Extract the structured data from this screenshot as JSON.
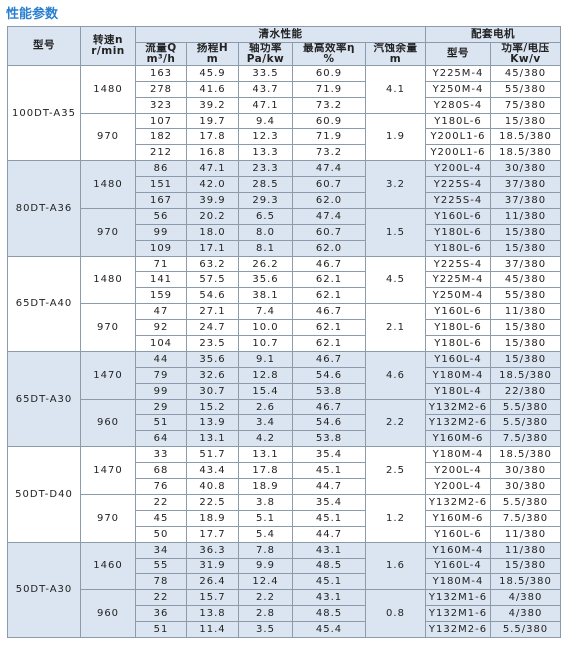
{
  "title": "性能参数",
  "header": {
    "model": "型号",
    "speed": [
      "转速n",
      "r/min"
    ],
    "clean_water": "清水性能",
    "motor": "配套电机",
    "columns": [
      [
        "流量Q",
        "m³/h"
      ],
      [
        "扬程H",
        "m"
      ],
      [
        "轴功率",
        "Pa/kw"
      ],
      [
        "最高效率η",
        "%"
      ],
      [
        "汽蚀余量",
        "m"
      ],
      [
        "型号"
      ],
      [
        "功率/电压",
        "Kw/v"
      ]
    ]
  },
  "models": [
    {
      "name": "100DT-A35",
      "speeds": [
        {
          "speed": "1480",
          "npsh": "4.1",
          "rows": [
            [
              "163",
              "45.9",
              "33.5",
              "60.9",
              "Y225M-4",
              "45/380"
            ],
            [
              "278",
              "41.6",
              "43.7",
              "71.9",
              "Y250M-4",
              "55/380"
            ],
            [
              "323",
              "39.2",
              "47.1",
              "73.2",
              "Y280S-4",
              "75/380"
            ]
          ]
        },
        {
          "speed": "970",
          "npsh": "1.9",
          "rows": [
            [
              "107",
              "19.7",
              "9.4",
              "60.9",
              "Y180L-6",
              "15/380"
            ],
            [
              "182",
              "17.8",
              "12.3",
              "71.9",
              "Y200L1-6",
              "18.5/380"
            ],
            [
              "212",
              "16.8",
              "13.3",
              "73.2",
              "Y200L1-6",
              "18.5/380"
            ]
          ]
        }
      ]
    },
    {
      "name": "80DT-A36",
      "speeds": [
        {
          "speed": "1480",
          "npsh": "3.2",
          "rows": [
            [
              "86",
              "47.1",
              "23.3",
              "47.4",
              "Y200L-4",
              "30/380"
            ],
            [
              "151",
              "42.0",
              "28.5",
              "60.7",
              "Y225S-4",
              "37/380"
            ],
            [
              "167",
              "39.9",
              "29.3",
              "62.0",
              "Y225S-4",
              "37/380"
            ]
          ]
        },
        {
          "speed": "970",
          "npsh": "1.5",
          "rows": [
            [
              "56",
              "20.2",
              "6.5",
              "47.4",
              "Y160L-6",
              "11/380"
            ],
            [
              "99",
              "18.0",
              "8.0",
              "60.7",
              "Y180L-6",
              "15/380"
            ],
            [
              "109",
              "17.1",
              "8.1",
              "62.0",
              "Y180L-6",
              "15/380"
            ]
          ]
        }
      ]
    },
    {
      "name": "65DT-A40",
      "speeds": [
        {
          "speed": "1480",
          "npsh": "4.5",
          "rows": [
            [
              "71",
              "63.2",
              "26.2",
              "46.7",
              "Y225S-4",
              "37/380"
            ],
            [
              "141",
              "57.5",
              "35.6",
              "62.1",
              "Y225M-4",
              "45/380"
            ],
            [
              "159",
              "54.6",
              "38.1",
              "62.1",
              "Y250M-4",
              "55/380"
            ]
          ]
        },
        {
          "speed": "970",
          "npsh": "2.1",
          "rows": [
            [
              "47",
              "27.1",
              "7.4",
              "46.7",
              "Y160L-6",
              "11/380"
            ],
            [
              "92",
              "24.7",
              "10.0",
              "62.1",
              "Y180L-6",
              "15/380"
            ],
            [
              "104",
              "23.5",
              "10.7",
              "62.1",
              "Y180L-6",
              "15/380"
            ]
          ]
        }
      ]
    },
    {
      "name": "65DT-A30",
      "speeds": [
        {
          "speed": "1470",
          "npsh": "4.6",
          "rows": [
            [
              "44",
              "35.6",
              "9.1",
              "46.7",
              "Y160L-4",
              "15/380"
            ],
            [
              "79",
              "32.6",
              "12.8",
              "54.6",
              "Y180M-4",
              "18.5/380"
            ],
            [
              "99",
              "30.7",
              "15.4",
              "53.8",
              "Y180L-4",
              "22/380"
            ]
          ]
        },
        {
          "speed": "960",
          "npsh": "2.2",
          "rows": [
            [
              "29",
              "15.2",
              "2.6",
              "46.7",
              "Y132M2-6",
              "5.5/380"
            ],
            [
              "51",
              "13.9",
              "3.4",
              "54.6",
              "Y132M2-6",
              "5.5/380"
            ],
            [
              "64",
              "13.1",
              "4.2",
              "53.8",
              "Y160M-6",
              "7.5/380"
            ]
          ]
        }
      ]
    },
    {
      "name": "50DT-D40",
      "speeds": [
        {
          "speed": "1470",
          "npsh": "2.5",
          "rows": [
            [
              "33",
              "51.7",
              "13.1",
              "35.4",
              "Y180M-4",
              "18.5/380"
            ],
            [
              "68",
              "43.4",
              "17.8",
              "45.1",
              "Y200L-4",
              "30/380"
            ],
            [
              "76",
              "40.8",
              "18.9",
              "44.7",
              "Y200L-4",
              "30/380"
            ]
          ]
        },
        {
          "speed": "970",
          "npsh": "1.2",
          "rows": [
            [
              "22",
              "22.5",
              "3.8",
              "35.4",
              "Y132M2-6",
              "5.5/380"
            ],
            [
              "45",
              "18.9",
              "5.1",
              "45.1",
              "Y160M-6",
              "7.5/380"
            ],
            [
              "50",
              "17.7",
              "5.4",
              "44.7",
              "Y160L-6",
              "11/380"
            ]
          ]
        }
      ]
    },
    {
      "name": "50DT-A30",
      "speeds": [
        {
          "speed": "1460",
          "npsh": "1.6",
          "rows": [
            [
              "34",
              "36.3",
              "7.8",
              "43.1",
              "Y160M-4",
              "11/380"
            ],
            [
              "55",
              "31.9",
              "9.9",
              "48.5",
              "Y160L-4",
              "15/380"
            ],
            [
              "78",
              "26.4",
              "12.4",
              "45.1",
              "Y180M-4",
              "18.5/380"
            ]
          ]
        },
        {
          "speed": "960",
          "npsh": "0.8",
          "rows": [
            [
              "22",
              "15.7",
              "2.2",
              "43.1",
              "Y132M1-6",
              "4/380"
            ],
            [
              "36",
              "13.8",
              "2.8",
              "48.5",
              "Y132M1-6",
              "4/380"
            ],
            [
              "51",
              "11.4",
              "3.5",
              "45.4",
              "Y132M2-6",
              "5.5/380"
            ]
          ]
        }
      ]
    }
  ]
}
